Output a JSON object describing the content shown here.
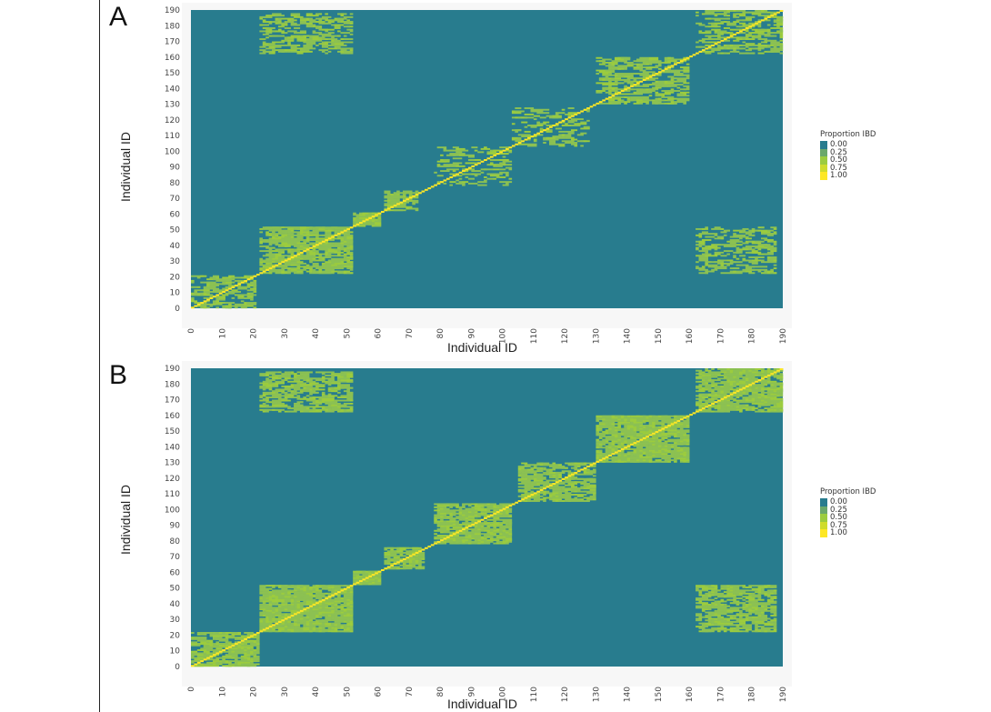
{
  "figure": {
    "panels": [
      "A",
      "B"
    ]
  },
  "chart_data": [
    {
      "type": "heatmap",
      "panel": "A",
      "title": "",
      "xlabel": "Individual ID",
      "ylabel": "Individual ID",
      "xlim": [
        0,
        190
      ],
      "ylim": [
        0,
        190
      ],
      "x_ticks": [
        "0",
        "10",
        "20",
        "30",
        "40",
        "50",
        "60",
        "70",
        "80",
        "90",
        "100",
        "110",
        "120",
        "130",
        "140",
        "150",
        "160",
        "170",
        "180",
        "190"
      ],
      "y_ticks": [
        "0",
        "10",
        "20",
        "30",
        "40",
        "50",
        "60",
        "70",
        "80",
        "90",
        "100",
        "110",
        "120",
        "130",
        "140",
        "150",
        "160",
        "170",
        "180",
        "190"
      ],
      "legend": {
        "title": "Proportion IBD",
        "labels": [
          "0.00",
          "0.25",
          "0.50",
          "0.75",
          "1.00"
        ],
        "colors": [
          "#287c8e",
          "#6aa86a",
          "#9ccc3e",
          "#cfdc2c",
          "#fde725"
        ]
      },
      "background_value": 0.0,
      "diagonal_value": 1.0,
      "blocks": [
        {
          "x": [
            0,
            21
          ],
          "y": [
            0,
            21
          ],
          "value": 0.5,
          "density": 0.35
        },
        {
          "x": [
            22,
            52
          ],
          "y": [
            22,
            52
          ],
          "value": 0.5,
          "density": 0.6
        },
        {
          "x": [
            52,
            61
          ],
          "y": [
            52,
            61
          ],
          "value": 0.55,
          "density": 0.9
        },
        {
          "x": [
            62,
            73
          ],
          "y": [
            62,
            75
          ],
          "value": 0.5,
          "density": 0.45
        },
        {
          "x": [
            78,
            103
          ],
          "y": [
            78,
            103
          ],
          "value": 0.5,
          "density": 0.2
        },
        {
          "x": [
            103,
            128
          ],
          "y": [
            103,
            128
          ],
          "value": 0.5,
          "density": 0.2
        },
        {
          "x": [
            130,
            160
          ],
          "y": [
            130,
            160
          ],
          "value": 0.5,
          "density": 0.35
        },
        {
          "x": [
            162,
            190
          ],
          "y": [
            162,
            190
          ],
          "value": 0.5,
          "density": 0.35
        },
        {
          "x": [
            22,
            52
          ],
          "y": [
            162,
            188
          ],
          "value": 0.5,
          "density": 0.35
        },
        {
          "x": [
            162,
            188
          ],
          "y": [
            22,
            52
          ],
          "value": 0.5,
          "density": 0.3
        }
      ]
    },
    {
      "type": "heatmap",
      "panel": "B",
      "title": "",
      "xlabel": "Individual ID",
      "ylabel": "Individual ID",
      "xlim": [
        0,
        190
      ],
      "ylim": [
        0,
        190
      ],
      "x_ticks": [
        "0",
        "10",
        "20",
        "30",
        "40",
        "50",
        "60",
        "70",
        "80",
        "90",
        "100",
        "110",
        "120",
        "130",
        "140",
        "150",
        "160",
        "170",
        "180",
        "190"
      ],
      "y_ticks": [
        "0",
        "10",
        "20",
        "30",
        "40",
        "50",
        "60",
        "70",
        "80",
        "90",
        "100",
        "110",
        "120",
        "130",
        "140",
        "150",
        "160",
        "170",
        "180",
        "190"
      ],
      "legend": {
        "title": "Proportion IBD",
        "labels": [
          "0.00",
          "0.25",
          "0.50",
          "0.75",
          "1.00"
        ],
        "colors": [
          "#287c8e",
          "#6aa86a",
          "#9ccc3e",
          "#cfdc2c",
          "#fde725"
        ]
      },
      "background_value": 0.0,
      "diagonal_value": 1.0,
      "blocks": [
        {
          "x": [
            0,
            22
          ],
          "y": [
            0,
            22
          ],
          "value": 0.5,
          "density": 0.6
        },
        {
          "x": [
            22,
            52
          ],
          "y": [
            22,
            52
          ],
          "value": 0.5,
          "density": 0.8
        },
        {
          "x": [
            52,
            61
          ],
          "y": [
            52,
            61
          ],
          "value": 0.55,
          "density": 0.95
        },
        {
          "x": [
            62,
            75
          ],
          "y": [
            62,
            76
          ],
          "value": 0.5,
          "density": 0.7
        },
        {
          "x": [
            78,
            103
          ],
          "y": [
            78,
            104
          ],
          "value": 0.5,
          "density": 0.7
        },
        {
          "x": [
            105,
            130
          ],
          "y": [
            105,
            130
          ],
          "value": 0.5,
          "density": 0.55
        },
        {
          "x": [
            130,
            160
          ],
          "y": [
            130,
            160
          ],
          "value": 0.5,
          "density": 0.75
        },
        {
          "x": [
            162,
            190
          ],
          "y": [
            162,
            190
          ],
          "value": 0.5,
          "density": 0.65
        },
        {
          "x": [
            22,
            52
          ],
          "y": [
            162,
            188
          ],
          "value": 0.5,
          "density": 0.5
        },
        {
          "x": [
            162,
            188
          ],
          "y": [
            22,
            52
          ],
          "value": 0.5,
          "density": 0.5
        }
      ]
    }
  ]
}
